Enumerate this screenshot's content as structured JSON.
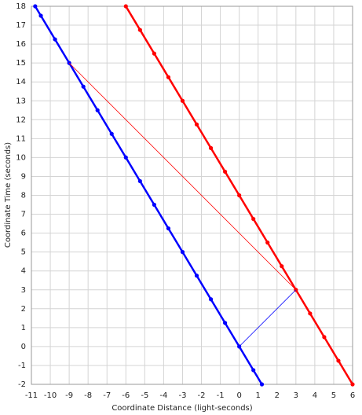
{
  "chart_data": {
    "type": "line",
    "xlabel": "Coordinate Distance (light-seconds)",
    "ylabel": "Coordinate Time (seconds)",
    "xlim": [
      -11,
      6
    ],
    "ylim": [
      -2,
      18
    ],
    "xticks": [
      -11,
      -10,
      -9,
      -8,
      -7,
      -6,
      -5,
      -4,
      -3,
      -2,
      -1,
      0,
      1,
      2,
      3,
      4,
      5,
      6
    ],
    "yticks": [
      -2,
      -1,
      0,
      1,
      2,
      3,
      4,
      5,
      6,
      7,
      8,
      9,
      10,
      11,
      12,
      13,
      14,
      15,
      16,
      17,
      18
    ],
    "grid": true,
    "series": [
      {
        "color": "#0000ff",
        "width": 2.5,
        "markers": true,
        "x": [
          1.2,
          0.75,
          0,
          -0.75,
          -1.5,
          -2.25,
          -3,
          -3.75,
          -4.5,
          -5.25,
          -6,
          -6.75,
          -7.5,
          -8.25,
          -9,
          -9.75,
          -10.5,
          -10.8
        ],
        "values": [
          -2,
          -1.25,
          0,
          1.25,
          2.5,
          3.75,
          5,
          6.25,
          7.5,
          8.75,
          10,
          11.25,
          12.5,
          13.75,
          15,
          16.25,
          17.5,
          18
        ]
      },
      {
        "color": "#ff0000",
        "width": 2.5,
        "markers": true,
        "x": [
          6,
          5.25,
          4.5,
          3.75,
          3,
          2.25,
          1.5,
          0.75,
          0,
          -0.75,
          -1.5,
          -2.25,
          -3,
          -3.75,
          -4.5,
          -5.25,
          -6
        ],
        "values": [
          -2,
          -0.75,
          0.5,
          1.75,
          3,
          4.25,
          5.5,
          6.75,
          8,
          9.25,
          10.5,
          11.75,
          13,
          14.25,
          15.5,
          16.75,
          18
        ]
      },
      {
        "color": "#0000ff",
        "width": 0.8,
        "markers": false,
        "x": [
          0,
          3
        ],
        "values": [
          0,
          3
        ]
      },
      {
        "color": "#ff0000",
        "width": 0.8,
        "markers": false,
        "x": [
          3,
          -9
        ],
        "values": [
          3,
          15
        ]
      }
    ]
  }
}
